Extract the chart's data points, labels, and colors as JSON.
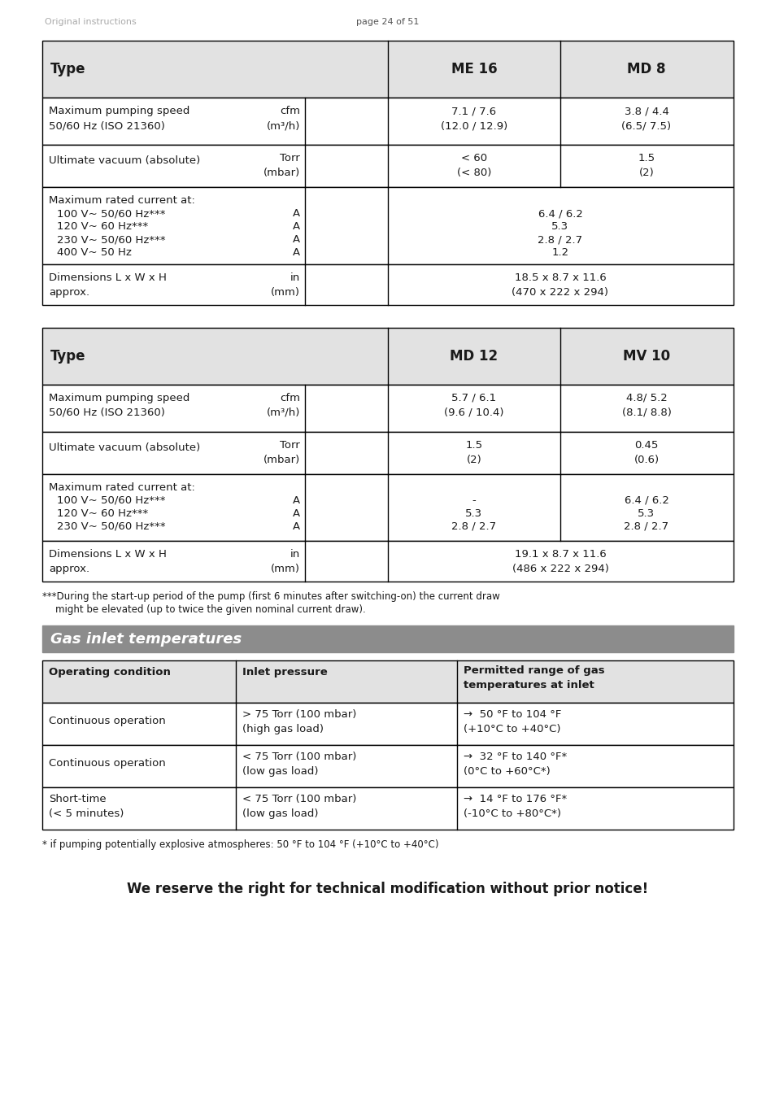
{
  "page_header_left": "Original instructions",
  "page_header_center": "page 24 of 51",
  "bg_color": "#ffffff",
  "table1_header": [
    "Type",
    "ME 16",
    "MD 8"
  ],
  "table2_header": [
    "Type",
    "MD 12",
    "MV 10"
  ],
  "section_title": "Gas inlet temperatures",
  "table3_header": [
    "Operating condition",
    "Inlet pressure",
    "Permitted range of gas\ntemperatures at inlet"
  ],
  "footnote1": "***During the start-up period of the pump (first 6 minutes after switching-on) the current draw\n    might be elevated (up to twice the given nominal current draw).",
  "footnote2": "* if pumping potentially explosive atmospheres: 50 °F to 104 °F (+10°C to +40°C)",
  "final_note": "We reserve the right for technical modification without prior notice!"
}
